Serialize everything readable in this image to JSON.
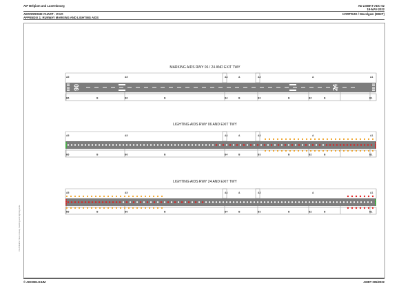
{
  "header": {
    "publisher": "AIP Belgium and Luxembourg",
    "doc_code": "AD 2.EBKT-ADC-02",
    "date": "19-MAY-2022",
    "chart_type": "AERODROME CHART - ICAO",
    "appendix": "APPENDIX 1: RUNWAY MARKING AND LIGHTING AIDS",
    "location": "KORTRIJK / Wevelgem (EBKT)"
  },
  "side_note": "CHANGES: New runway marking and lighting aids.",
  "footer": {
    "left": "© AIM BELGIUM",
    "right": "AMDT 005/2022"
  },
  "diagrams": [
    {
      "title": "MARKING AIDS RWY 06 / 24 AND EXIT TWY",
      "rwy_left": "06",
      "rwy_right": "24",
      "top_labels": [
        "A5",
        "A5",
        "A4",
        "A",
        "A3",
        "A",
        "A1"
      ],
      "bottom_labels": [
        "B6",
        "B",
        "B6",
        "B",
        "B4",
        "B",
        "B3",
        "B",
        "B2",
        "B",
        "B1"
      ]
    },
    {
      "title": "LIGHTING AIDS RWY 06 AND EXIT TWY",
      "top_labels": [
        "A5",
        "A5",
        "A4",
        "A",
        "A3",
        "A",
        "A1"
      ],
      "bottom_labels": [
        "B6",
        "B",
        "B6",
        "B",
        "B4",
        "B",
        "B3",
        "B",
        "B2",
        "B",
        "B1"
      ]
    },
    {
      "title": "LIGHTING AIDS RWY 24 AND EXIT TWY",
      "top_labels": [
        "A5",
        "A5",
        "A4",
        "A",
        "A3",
        "A",
        "A1"
      ],
      "bottom_labels": [
        "B6",
        "B",
        "B6",
        "B",
        "B4",
        "B",
        "B3",
        "B",
        "B2",
        "B",
        "B1"
      ]
    }
  ],
  "colors": {
    "runway": "#7d7d7d",
    "taxiway_outline": "#9a9a9a",
    "edge_light": "#ffffff",
    "amber_light": "#f0a020",
    "red_light": "#e02020",
    "green_light": "#30c030"
  }
}
